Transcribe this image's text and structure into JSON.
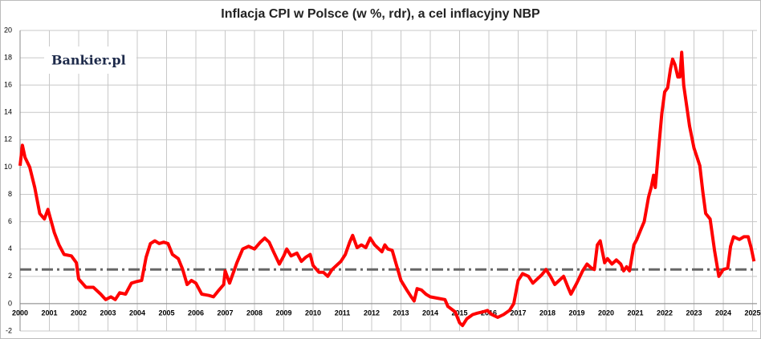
{
  "chart_data": {
    "type": "line",
    "title": "Inflacja CPI w Polsce (w %, rdr), a cel inflacyjny NBP",
    "logo": "Bankier.pl",
    "xlim": [
      2000,
      2025.15
    ],
    "xticks": [
      2000,
      2001,
      2002,
      2003,
      2004,
      2005,
      2006,
      2007,
      2008,
      2009,
      2010,
      2011,
      2012,
      2013,
      2014,
      2015,
      2016,
      2017,
      2018,
      2019,
      2020,
      2021,
      2022,
      2023,
      2024,
      2025
    ],
    "ylim": [
      -2,
      20
    ],
    "yticks": [
      -2,
      0,
      2,
      4,
      6,
      8,
      10,
      12,
      14,
      16,
      18,
      20
    ],
    "grid": true,
    "target": {
      "value": 2.5,
      "color": "#666666"
    },
    "series": [
      {
        "color": "#ff0000",
        "x": [
          2000,
          2000.08,
          2000.17,
          2000.33,
          2000.5,
          2000.67,
          2000.83,
          2000.95,
          2001.17,
          2001.33,
          2001.5,
          2001.75,
          2001.92,
          2002.0,
          2002.25,
          2002.5,
          2002.75,
          2002.92,
          2003.1,
          2003.25,
          2003.4,
          2003.6,
          2003.8,
          2003.95,
          2004.15,
          2004.3,
          2004.45,
          2004.6,
          2004.75,
          2004.9,
          2005.05,
          2005.2,
          2005.4,
          2005.55,
          2005.7,
          2005.85,
          2006.0,
          2006.2,
          2006.45,
          2006.6,
          2006.75,
          2006.95,
          2007.0,
          2007.15,
          2007.4,
          2007.6,
          2007.8,
          2008.0,
          2008.2,
          2008.35,
          2008.5,
          2008.65,
          2008.85,
          2009.0,
          2009.1,
          2009.25,
          2009.45,
          2009.6,
          2009.75,
          2009.9,
          2010.0,
          2010.2,
          2010.35,
          2010.5,
          2010.65,
          2010.8,
          2010.95,
          2011.1,
          2011.25,
          2011.35,
          2011.5,
          2011.65,
          2011.8,
          2011.95,
          2012.1,
          2012.25,
          2012.35,
          2012.45,
          2012.55,
          2012.7,
          2012.85,
          2013.0,
          2013.2,
          2013.35,
          2013.45,
          2013.55,
          2013.7,
          2013.85,
          2014.0,
          2014.25,
          2014.5,
          2014.6,
          2014.85,
          2015.0,
          2015.1,
          2015.25,
          2015.45,
          2015.6,
          2015.8,
          2015.95,
          2016.1,
          2016.3,
          2016.5,
          2016.7,
          2016.85,
          2017.0,
          2017.15,
          2017.35,
          2017.5,
          2017.65,
          2017.8,
          2017.95,
          2018.1,
          2018.25,
          2018.4,
          2018.55,
          2018.7,
          2018.8,
          2019.0,
          2019.2,
          2019.35,
          2019.5,
          2019.6,
          2019.7,
          2019.8,
          2019.95,
          2020.05,
          2020.2,
          2020.35,
          2020.5,
          2020.6,
          2020.7,
          2020.8,
          2020.95,
          2021.05,
          2021.2,
          2021.3,
          2021.45,
          2021.55,
          2021.62,
          2021.68,
          2021.78,
          2021.9,
          2022.0,
          2022.1,
          2022.2,
          2022.27,
          2022.35,
          2022.45,
          2022.52,
          2022.58,
          2022.65,
          2022.85,
          2023.0,
          2023.2,
          2023.3,
          2023.4,
          2023.55,
          2023.7,
          2023.85,
          2024.0,
          2024.15,
          2024.25,
          2024.35,
          2024.55,
          2024.7,
          2024.85,
          2024.95,
          2025.05
        ],
        "values": [
          10.1,
          11.6,
          10.7,
          10.0,
          8.5,
          6.6,
          6.2,
          6.9,
          5.2,
          4.3,
          3.6,
          3.5,
          3.0,
          1.8,
          1.2,
          1.2,
          0.7,
          0.3,
          0.5,
          0.3,
          0.8,
          0.7,
          1.5,
          1.6,
          1.7,
          3.4,
          4.4,
          4.6,
          4.4,
          4.5,
          4.4,
          3.6,
          3.3,
          2.5,
          1.4,
          1.7,
          1.5,
          0.7,
          0.6,
          0.5,
          0.9,
          1.4,
          2.4,
          1.5,
          3.0,
          4.0,
          4.2,
          4.0,
          4.5,
          4.8,
          4.5,
          3.8,
          2.9,
          3.5,
          4.0,
          3.5,
          3.7,
          3.1,
          3.4,
          3.6,
          2.8,
          2.3,
          2.3,
          2.0,
          2.5,
          2.8,
          3.1,
          3.6,
          4.5,
          5.0,
          4.1,
          4.3,
          4.1,
          4.8,
          4.3,
          4.0,
          3.8,
          4.3,
          4.0,
          3.9,
          2.8,
          1.7,
          1.0,
          0.5,
          0.2,
          1.1,
          1.0,
          0.7,
          0.5,
          0.4,
          0.3,
          -0.2,
          -0.6,
          -1.4,
          -1.6,
          -1.1,
          -0.8,
          -0.7,
          -0.6,
          -0.5,
          -0.8,
          -1.0,
          -0.8,
          -0.5,
          0.0,
          1.7,
          2.2,
          2.0,
          1.5,
          1.8,
          2.1,
          2.5,
          2.0,
          1.4,
          1.7,
          2.0,
          1.2,
          0.7,
          1.5,
          2.4,
          2.9,
          2.6,
          2.5,
          4.3,
          4.6,
          3.0,
          3.3,
          2.9,
          3.2,
          2.9,
          2.4,
          2.7,
          2.4,
          4.3,
          4.7,
          5.5,
          6.0,
          7.8,
          8.6,
          9.4,
          8.5,
          11.0,
          13.9,
          15.5,
          15.8,
          17.2,
          17.9,
          17.5,
          16.6,
          16.6,
          18.4,
          16.0,
          13.0,
          11.4,
          10.1,
          8.2,
          6.6,
          6.2,
          3.9,
          2.0,
          2.5,
          2.6,
          4.2,
          4.9,
          4.7,
          4.9,
          4.9,
          4.1,
          3.1
        ]
      }
    ]
  }
}
